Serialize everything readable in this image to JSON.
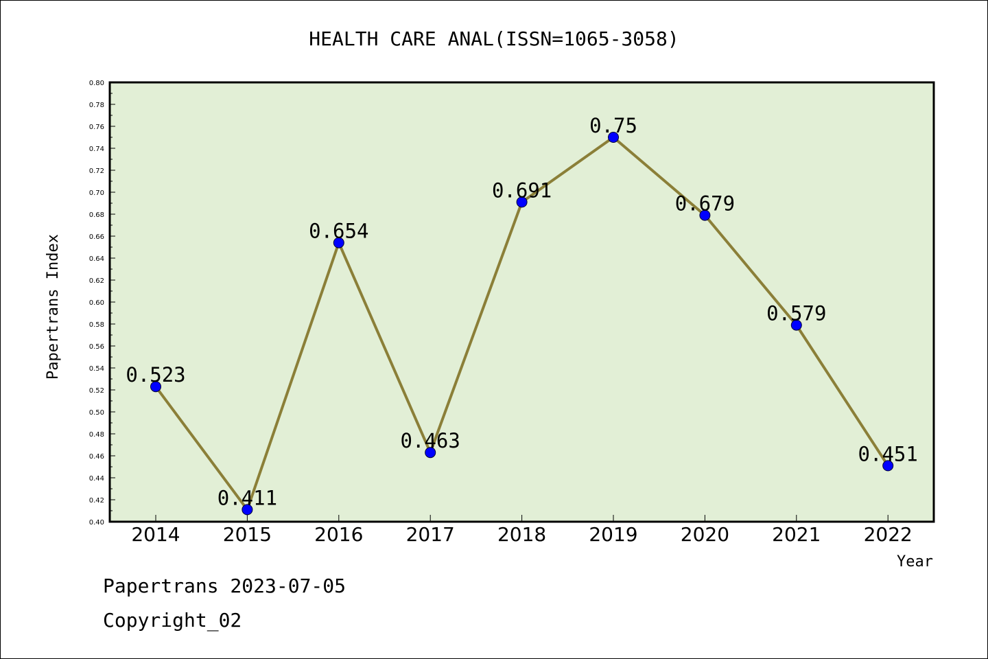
{
  "chart_data": {
    "type": "line",
    "title": "HEALTH CARE ANAL(ISSN=1065-3058)",
    "xlabel": "Year",
    "ylabel": "Papertrans Index",
    "categories": [
      "2014",
      "2015",
      "2016",
      "2017",
      "2018",
      "2019",
      "2020",
      "2021",
      "2022"
    ],
    "series": [
      {
        "values": [
          0.523,
          0.411,
          0.654,
          0.463,
          0.691,
          0.75,
          0.679,
          0.579,
          0.451
        ],
        "labels": [
          "0.523",
          "0.411",
          "0.654",
          "0.463",
          "0.691",
          "0.75",
          "0.679",
          "0.579",
          "0.451"
        ]
      }
    ],
    "ylim": [
      0.4,
      0.8
    ],
    "yticks": [
      "0.40",
      "0.42",
      "0.44",
      "0.46",
      "0.48",
      "0.50",
      "0.52",
      "0.54",
      "0.56",
      "0.58",
      "0.60",
      "0.62",
      "0.64",
      "0.66",
      "0.68",
      "0.70",
      "0.72",
      "0.74",
      "0.76",
      "0.78",
      "0.80"
    ],
    "grid": false,
    "colors": {
      "plot_bg": "#e2efd6",
      "line": "#8b7f38",
      "marker": "#0000ff"
    }
  },
  "footer": {
    "line1": "Papertrans 2023-07-05",
    "line2": "Copyright_02"
  }
}
